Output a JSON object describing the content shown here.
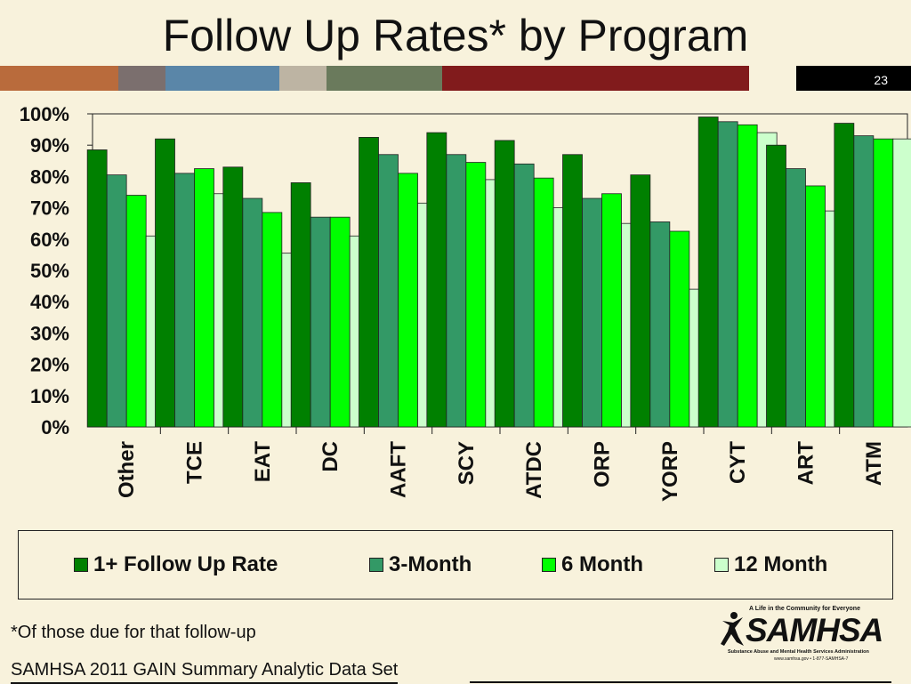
{
  "slide": {
    "title": "Follow Up Rates* by Program",
    "number": "23",
    "footnote": "*Of those due for that follow-up",
    "source": "SAMHSA 2011 GAIN Summary Analytic Data Set"
  },
  "logo": {
    "tagline": "A Life in the Community for Everyone",
    "wordmark": "SAMHSA",
    "subtitle": "Substance Abuse and Mental Health Services Administration",
    "url": "www.samhsa.gov • 1-877-SAMHSA-7"
  },
  "header_stripes": [
    "#b96b3c",
    "#7b6f6e",
    "#5a86a8",
    "#bdb4a3",
    "#6a7a5c",
    "#811b1c",
    "#f8f2dc",
    "#000000"
  ],
  "chart_data": {
    "type": "bar",
    "categories": [
      "Other",
      "TCE",
      "EAT",
      "DC",
      "AAFT",
      "SCY",
      "ATDC",
      "ORP",
      "YORP",
      "CYT",
      "ART",
      "ATM"
    ],
    "series": [
      {
        "name": "1+ Follow Up Rate",
        "color": "#008000",
        "values": [
          88.5,
          92,
          83,
          78,
          92.5,
          94,
          91.5,
          87,
          80.5,
          99,
          90,
          97
        ]
      },
      {
        "name": "3-Month",
        "color": "#339966",
        "values": [
          80.5,
          81,
          73,
          67,
          87,
          87,
          84,
          73,
          65.5,
          97.5,
          82.5,
          93
        ]
      },
      {
        "name": "6 Month",
        "color": "#00ff00",
        "values": [
          74,
          82.5,
          68.5,
          67,
          81,
          84.5,
          79.5,
          74.5,
          62.5,
          96.5,
          77,
          92
        ]
      },
      {
        "name": "12 Month",
        "color": "#ccffcc",
        "values": [
          61,
          74.5,
          55.5,
          61,
          71.5,
          79,
          70,
          65,
          44,
          94,
          69,
          92
        ]
      }
    ],
    "y_ticks": [
      "0%",
      "10%",
      "20%",
      "30%",
      "40%",
      "50%",
      "60%",
      "70%",
      "80%",
      "90%",
      "100%"
    ],
    "ylim": [
      0,
      100
    ],
    "grid": false,
    "legend_position": "bottom"
  }
}
